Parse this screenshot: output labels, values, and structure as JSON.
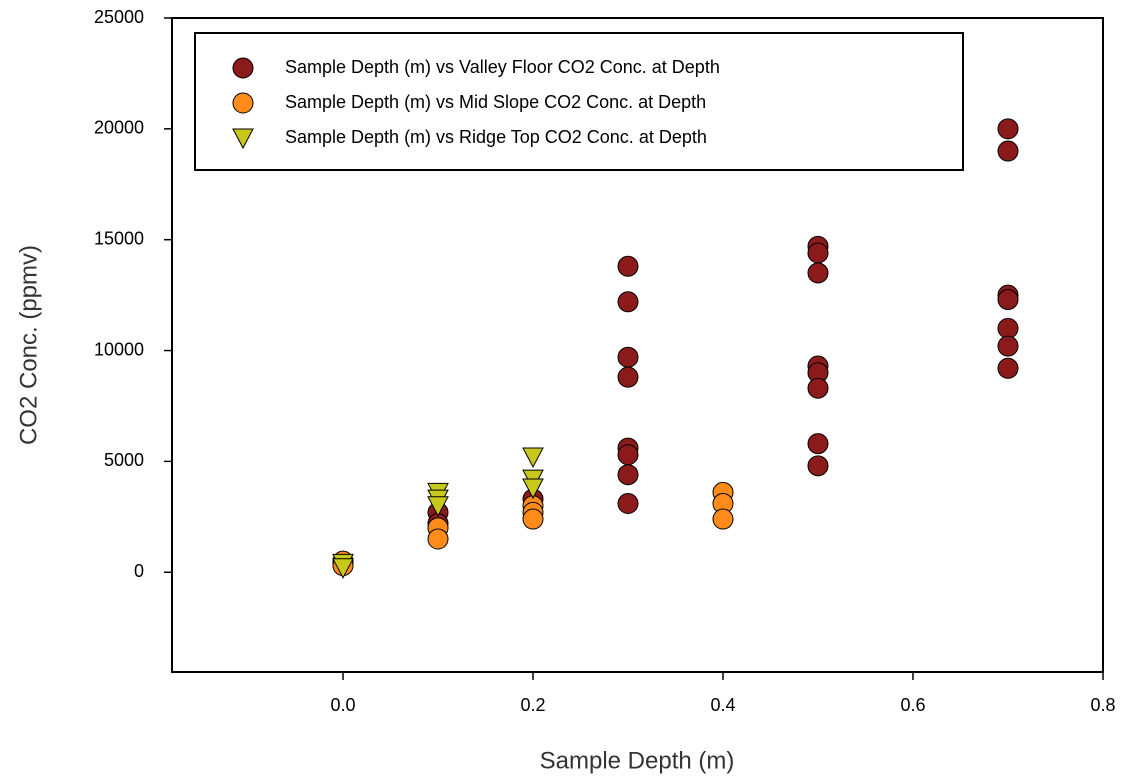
{
  "chart_data": {
    "type": "scatter",
    "x_label": "Sample Depth (m)",
    "y_label": "CO2 Conc. (ppmv)",
    "xlim": [
      -0.18,
      0.8
    ],
    "ylim": [
      -4500,
      25000
    ],
    "xticks": [
      {
        "value": 0,
        "label": "0.0"
      },
      0.2,
      0.4,
      0.6,
      0.8
    ],
    "yticks": [
      0,
      5000,
      10000,
      15000,
      20000,
      25000
    ],
    "grid": false,
    "legend": "upper-left",
    "series": [
      {
        "name": "Sample Depth (m) vs Valley Floor CO2 Conc. at Depth",
        "color": "#8b1a1a",
        "marker": "circle",
        "x": [
          0,
          0.1,
          0.1,
          0.2,
          0.3,
          0.3,
          0.3,
          0.3,
          0.3,
          0.3,
          0.3,
          0.3,
          0.5,
          0.5,
          0.5,
          0.5,
          0.5,
          0.5,
          0.5,
          0.5,
          0.7,
          0.7,
          0.7,
          0.7,
          0.7,
          0.7,
          0.7
        ],
        "values": [
          400,
          2700,
          2200,
          3300,
          13800,
          12200,
          9700,
          8800,
          5600,
          5300,
          4400,
          3100,
          14700,
          14400,
          13500,
          9300,
          9000,
          8300,
          5800,
          4800,
          20000,
          19000,
          12500,
          12300,
          11000,
          10200,
          9200
        ]
      },
      {
        "name": "Sample Depth (m) vs Mid Slope CO2 Conc. at Depth",
        "color": "#ff8c1a",
        "marker": "circle",
        "x": [
          0,
          0,
          0.1,
          0.1,
          0.2,
          0.2,
          0.2,
          0.4,
          0.4,
          0.4
        ],
        "values": [
          500,
          300,
          2000,
          1500,
          3000,
          2700,
          2400,
          3600,
          3100,
          2400
        ]
      },
      {
        "name": "Sample Depth (m) vs Ridge Top CO2 Conc. at Depth",
        "color": "#c8c81a",
        "marker": "triangle-down",
        "x": [
          0,
          0,
          0.1,
          0.1,
          0.1,
          0.2,
          0.2,
          0.2
        ],
        "values": [
          400,
          200,
          3600,
          3300,
          3000,
          5200,
          4200,
          3800
        ]
      }
    ]
  }
}
